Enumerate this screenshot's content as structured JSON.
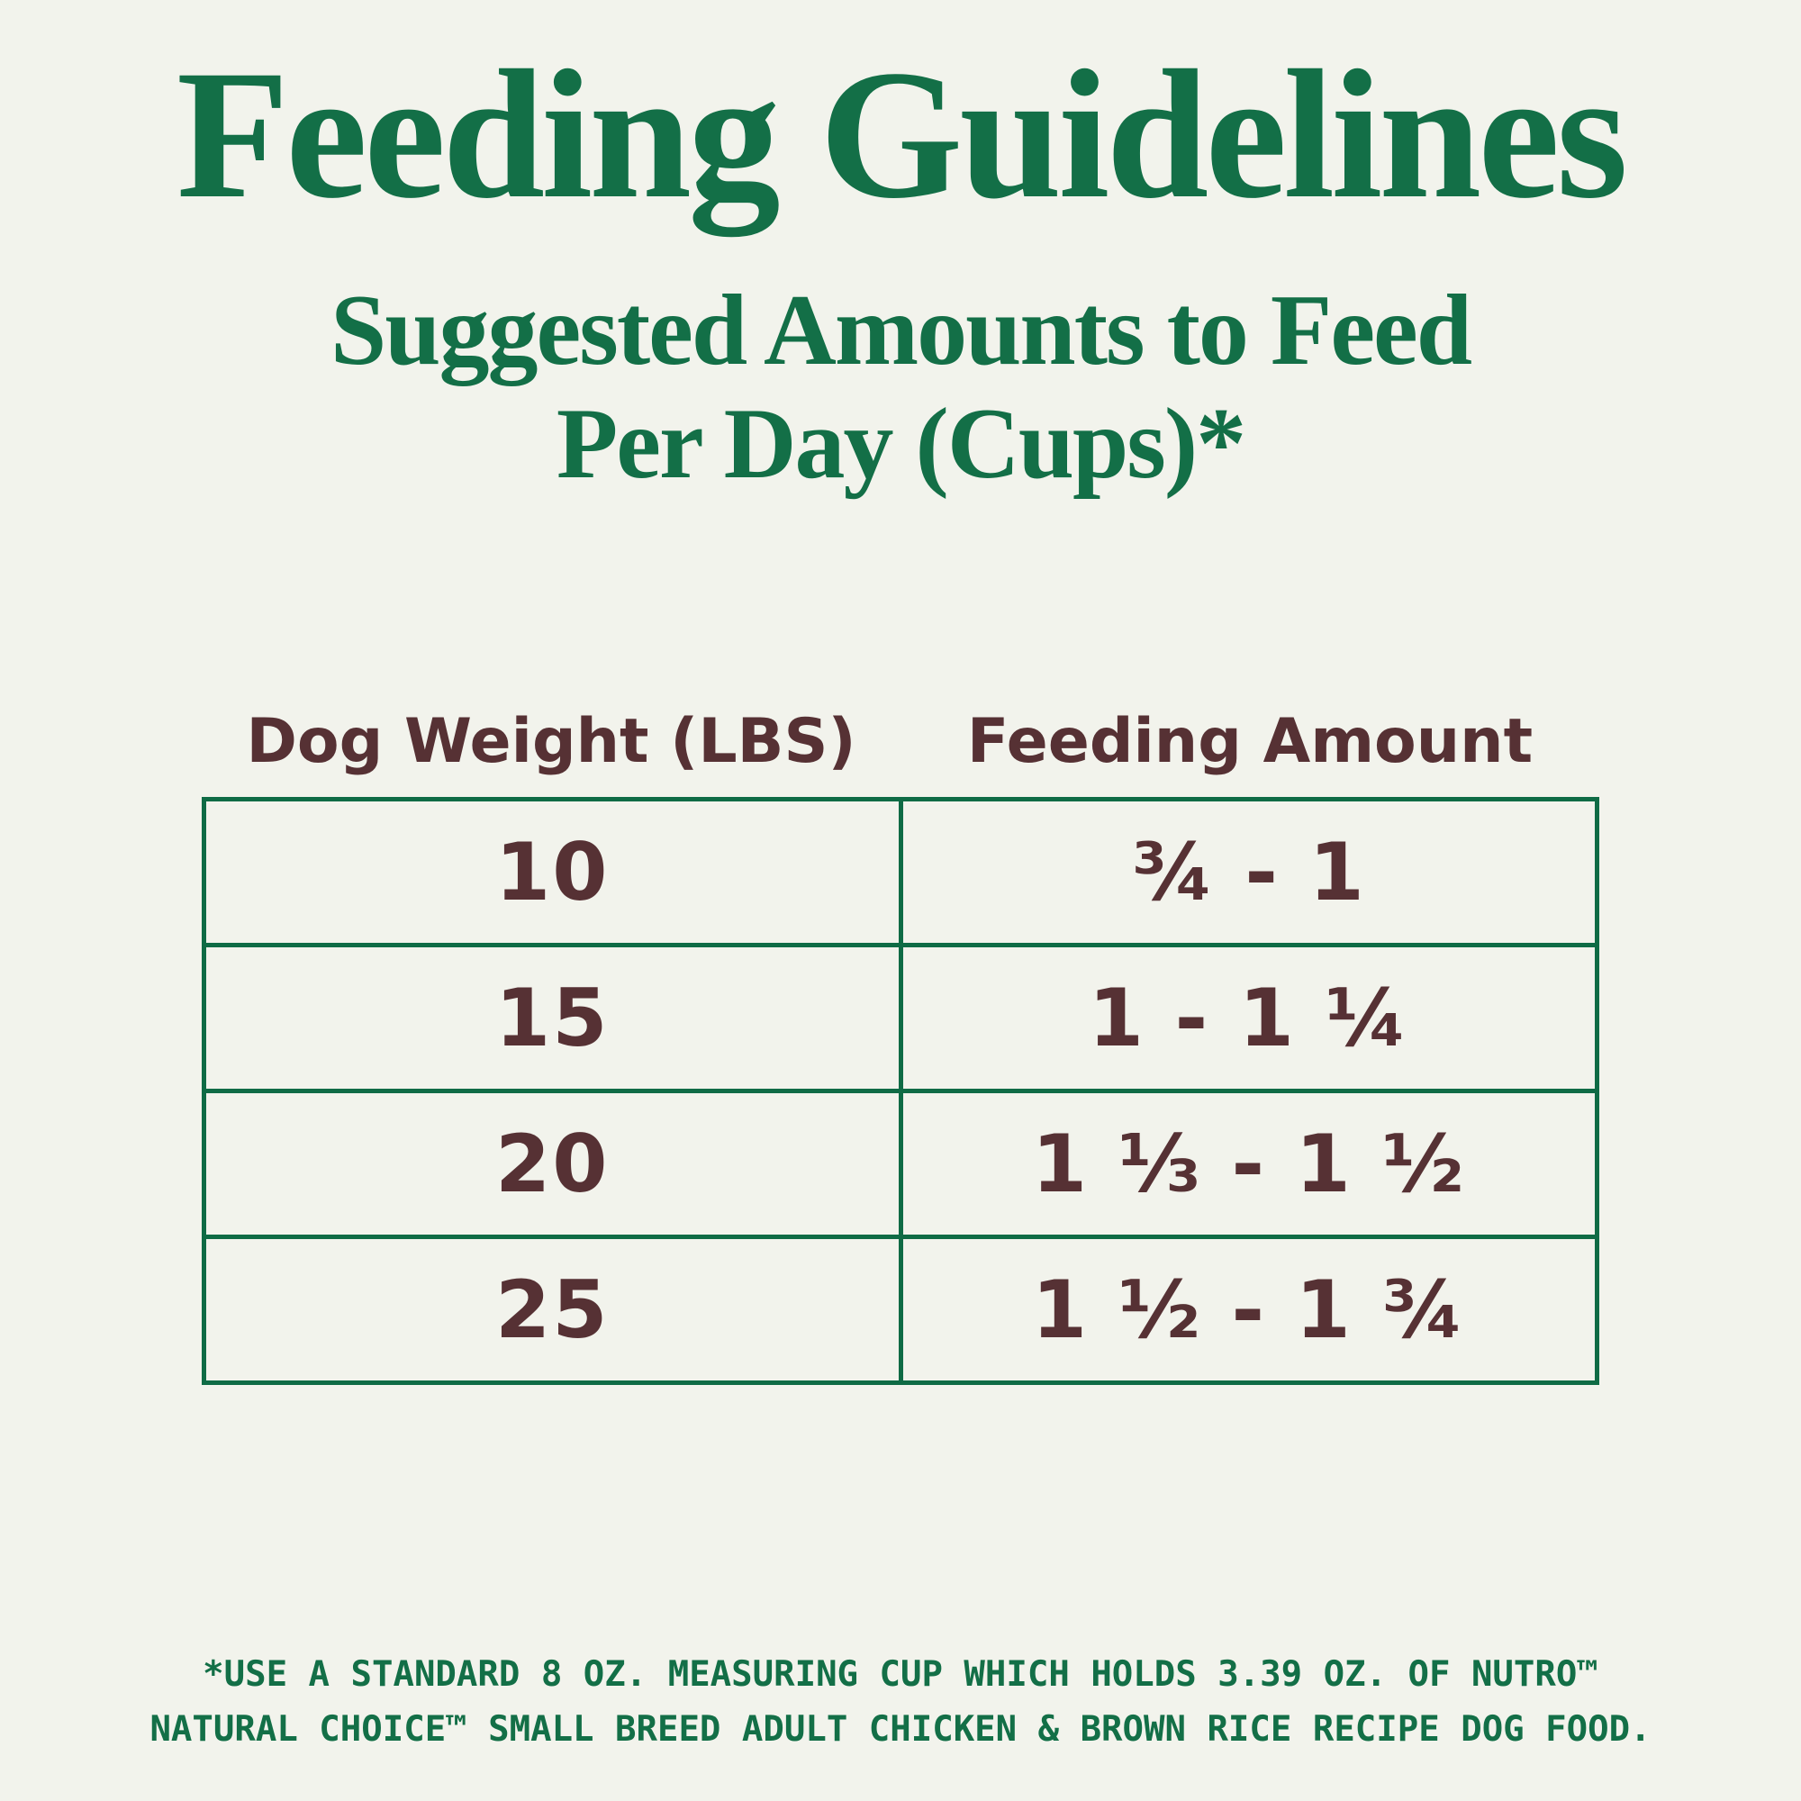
{
  "title": "Feeding Guidelines",
  "subtitle": {
    "line1": "Suggested Amounts to Feed",
    "line2": "Per Day (Cups)*"
  },
  "table": {
    "columns": [
      "Dog Weight (LBS)",
      "Feeding Amount"
    ],
    "rows": [
      {
        "weight": "10",
        "amount": "¾ - 1"
      },
      {
        "weight": "15",
        "amount": "1 - 1 ¼"
      },
      {
        "weight": "20",
        "amount": "1 ⅓ - 1 ½"
      },
      {
        "weight": "25",
        "amount": "1 ½ - 1 ¾"
      }
    ]
  },
  "footnote": {
    "line1": "*USE A STANDARD 8 OZ. MEASURING CUP WHICH HOLDS 3.39 OZ. OF NUTRO™",
    "line2": "NATURAL CHOICE™ SMALL BREED ADULT CHICKEN & BROWN RICE RECIPE DOG FOOD."
  },
  "colors": {
    "background": "#f2f3ec",
    "heading_green": "#136f47",
    "table_border_green": "#0f6b45",
    "text_maroon": "#563134"
  }
}
